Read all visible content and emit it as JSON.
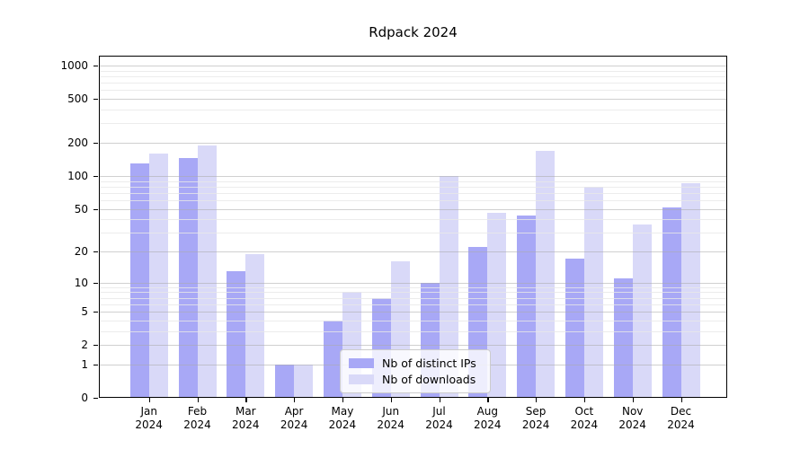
{
  "title": "Rdpack 2024",
  "chart_data": {
    "type": "bar",
    "title": "Rdpack 2024",
    "categories": [
      "Jan",
      "Feb",
      "Mar",
      "Apr",
      "May",
      "Jun",
      "Jul",
      "Aug",
      "Sep",
      "Oct",
      "Nov",
      "Dec"
    ],
    "x_year": "2024",
    "series": [
      {
        "name": "Nb of distinct IPs",
        "color": "#a8a8f6",
        "values": [
          130,
          146,
          13,
          1,
          4,
          7,
          10,
          22,
          43,
          17,
          11,
          51
        ]
      },
      {
        "name": "Nb of downloads",
        "color": "#d9d9f8",
        "values": [
          160,
          188,
          19,
          1,
          8,
          16,
          100,
          46,
          168,
          80,
          36,
          86
        ]
      }
    ],
    "y_scale": "log1p",
    "ylim": [
      0,
      1230
    ],
    "y_major_ticks": [
      0,
      1,
      2,
      5,
      10,
      20,
      50,
      100,
      200,
      500,
      1000
    ],
    "y_minor_ticks": [
      3,
      4,
      6,
      7,
      8,
      9,
      30,
      40,
      60,
      70,
      80,
      90,
      300,
      400,
      600,
      700,
      800,
      900
    ],
    "grid": true,
    "legend_position": "lower-center-inside"
  },
  "colors": {
    "background": "#ffffff",
    "spine": "#000000",
    "grid_major": "#a9a9a9",
    "grid_minor": "#e7e7e7",
    "legend_border": "#cccccc"
  }
}
